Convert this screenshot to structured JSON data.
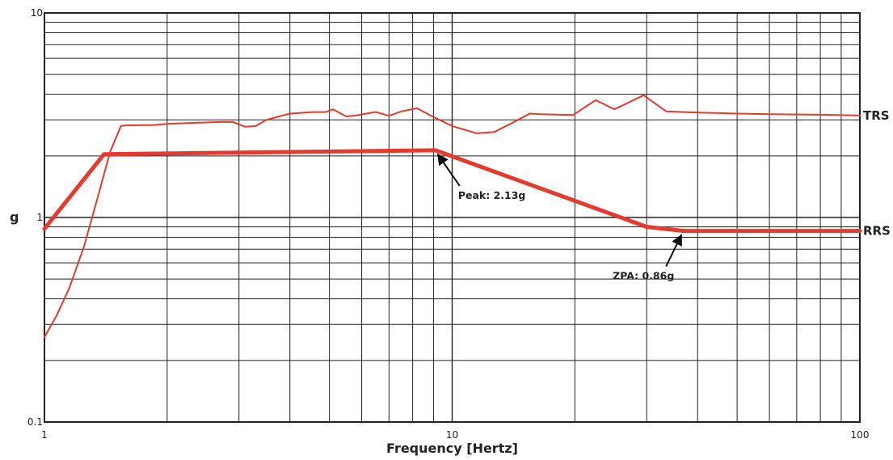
{
  "chart_data": {
    "type": "line",
    "title": "",
    "xlabel": "Frequency [Hertz]",
    "ylabel": "g",
    "x_scale": "log",
    "y_scale": "log",
    "xlim": [
      1,
      100
    ],
    "ylim": [
      0.1,
      10
    ],
    "x_ticks": [
      {
        "value": 1,
        "label": "1"
      },
      {
        "value": 10,
        "label": "10"
      },
      {
        "value": 100,
        "label": "100"
      }
    ],
    "y_ticks": [
      {
        "value": 0.1,
        "label": "0.1"
      },
      {
        "value": 1,
        "label": "1"
      },
      {
        "value": 10,
        "label": "10"
      }
    ],
    "grid": true,
    "series": [
      {
        "name": "TRS",
        "color": "#e53a2e",
        "x": [
          1.0,
          1.07,
          1.15,
          1.25,
          1.35,
          1.45,
          1.54,
          1.58,
          1.75,
          1.85,
          2.0,
          2.3,
          2.7,
          2.9,
          3.1,
          3.3,
          3.5,
          4.0,
          4.5,
          4.9,
          5.1,
          5.5,
          5.8,
          6.5,
          7.0,
          7.5,
          8.2,
          9.0,
          10.0,
          11.5,
          12.7,
          14.5,
          15.5,
          16.5,
          19.8,
          22.5,
          25.0,
          29.5,
          33.5,
          40,
          50,
          60,
          80,
          100
        ],
        "values": [
          0.26,
          0.33,
          0.45,
          0.72,
          1.25,
          2.1,
          2.8,
          2.82,
          2.83,
          2.83,
          2.87,
          2.9,
          2.93,
          2.93,
          2.78,
          2.8,
          3.0,
          3.22,
          3.27,
          3.28,
          3.38,
          3.12,
          3.15,
          3.28,
          3.14,
          3.3,
          3.42,
          3.1,
          2.8,
          2.58,
          2.62,
          3.0,
          3.22,
          3.2,
          3.17,
          3.75,
          3.38,
          3.96,
          3.3,
          3.26,
          3.22,
          3.2,
          3.18,
          3.15
        ]
      },
      {
        "name": "RRS",
        "color": "#e53a2e",
        "x": [
          1.0,
          1.4,
          9.1,
          30.0,
          37.0,
          100.0
        ],
        "values": [
          0.88,
          2.04,
          2.13,
          0.9,
          0.86,
          0.86
        ]
      }
    ],
    "annotations": [
      {
        "text": "Peak: 2.13g",
        "x": 9.1,
        "y": 2.13
      },
      {
        "text": "ZPA: 0.86g",
        "x": 37.0,
        "y": 0.86
      }
    ]
  }
}
